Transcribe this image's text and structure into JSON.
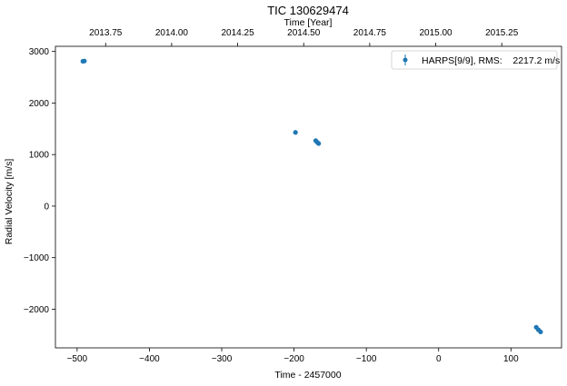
{
  "chart_data": {
    "type": "scatter",
    "title": "TIC 130629474",
    "xlabel": "Time - 2457000",
    "ylabel": "Radial Velocity [m/s]",
    "top_xlabel": "Time [Year]",
    "xlim": [
      -530,
      170
    ],
    "ylim": [
      -2750,
      3100
    ],
    "x_ticks": [
      -500,
      -400,
      -300,
      -200,
      -100,
      0,
      100
    ],
    "x_tick_labels": [
      "−500",
      "−400",
      "−300",
      "−200",
      "−100",
      "0",
      "100"
    ],
    "y_ticks": [
      -2000,
      -1000,
      0,
      1000,
      2000,
      3000
    ],
    "y_tick_labels": [
      "−2000",
      "−1000",
      "0",
      "1000",
      "2000",
      "3000"
    ],
    "top_ticks": [
      2013.75,
      2014.0,
      2014.25,
      2014.5,
      2014.75,
      2015.0,
      2015.25
    ],
    "top_tick_labels": [
      "2013.75",
      "2014.00",
      "2014.25",
      "2014.50",
      "2014.75",
      "2015.00",
      "2015.25"
    ],
    "legend_position": "top-right",
    "series": [
      {
        "name": "HARPS[9/9], RMS:    2217.2 m/s",
        "color": "#1f77b4",
        "marker": "circle",
        "points": [
          {
            "x": -492,
            "y": 2810
          },
          {
            "x": -490,
            "y": 2815
          },
          {
            "x": -198,
            "y": 1430
          },
          {
            "x": -170,
            "y": 1270
          },
          {
            "x": -168,
            "y": 1240
          },
          {
            "x": -166,
            "y": 1215
          },
          {
            "x": 135,
            "y": -2350
          },
          {
            "x": 138,
            "y": -2400
          },
          {
            "x": 141,
            "y": -2440
          }
        ]
      }
    ]
  }
}
